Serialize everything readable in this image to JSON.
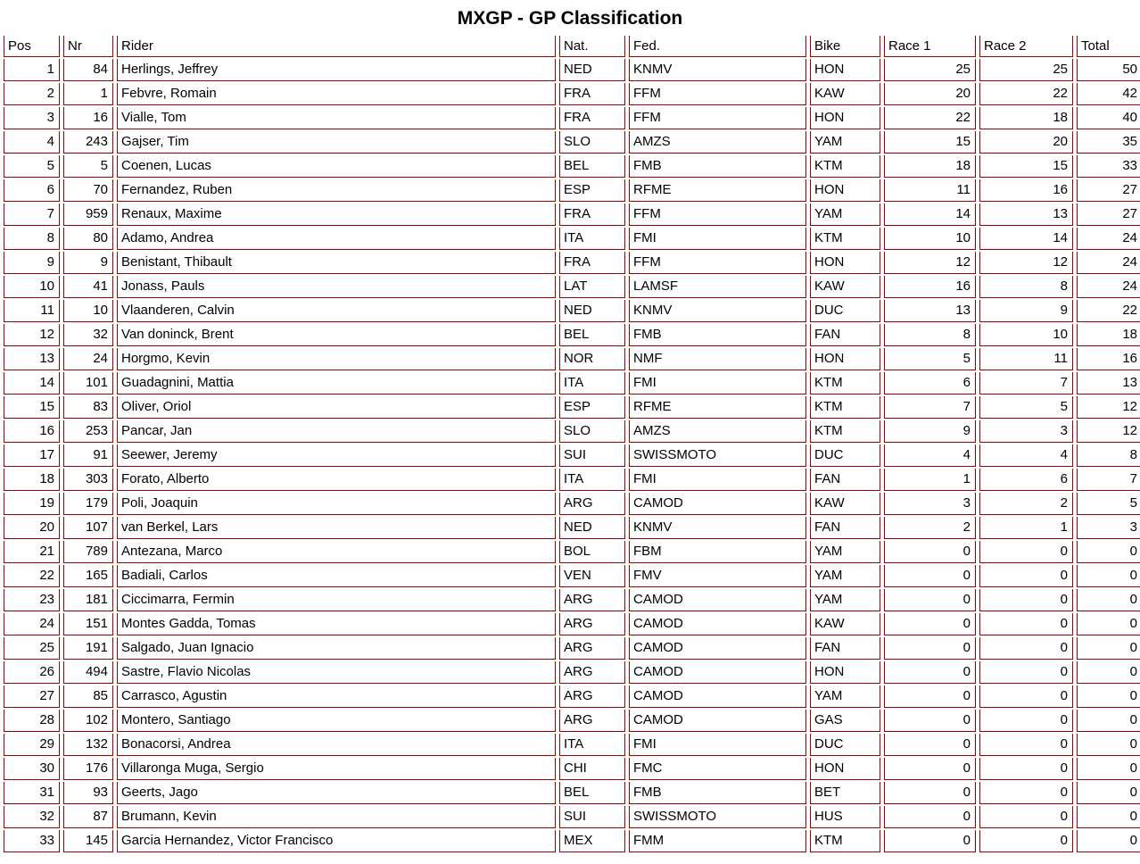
{
  "title": "MXGP - GP Classification",
  "colors": {
    "border": "#990000",
    "text": "#000000",
    "background": "#ffffff"
  },
  "table": {
    "columns": [
      {
        "key": "pos",
        "label": "Pos",
        "align": "right"
      },
      {
        "key": "nr",
        "label": "Nr",
        "align": "right"
      },
      {
        "key": "rider",
        "label": "Rider",
        "align": "left"
      },
      {
        "key": "nat",
        "label": "Nat.",
        "align": "left"
      },
      {
        "key": "fed",
        "label": "Fed.",
        "align": "left"
      },
      {
        "key": "bike",
        "label": "Bike",
        "align": "left"
      },
      {
        "key": "race1",
        "label": "Race 1",
        "align": "right"
      },
      {
        "key": "race2",
        "label": "Race 2",
        "align": "right"
      },
      {
        "key": "total",
        "label": "Total",
        "align": "right"
      }
    ],
    "rows": [
      [
        1,
        84,
        "Herlings, Jeffrey",
        "NED",
        "KNMV",
        "HON",
        25,
        25,
        50
      ],
      [
        2,
        1,
        "Febvre, Romain",
        "FRA",
        "FFM",
        "KAW",
        20,
        22,
        42
      ],
      [
        3,
        16,
        "Vialle, Tom",
        "FRA",
        "FFM",
        "HON",
        22,
        18,
        40
      ],
      [
        4,
        243,
        "Gajser, Tim",
        "SLO",
        "AMZS",
        "YAM",
        15,
        20,
        35
      ],
      [
        5,
        5,
        "Coenen, Lucas",
        "BEL",
        "FMB",
        "KTM",
        18,
        15,
        33
      ],
      [
        6,
        70,
        "Fernandez, Ruben",
        "ESP",
        "RFME",
        "HON",
        11,
        16,
        27
      ],
      [
        7,
        959,
        "Renaux, Maxime",
        "FRA",
        "FFM",
        "YAM",
        14,
        13,
        27
      ],
      [
        8,
        80,
        "Adamo, Andrea",
        "ITA",
        "FMI",
        "KTM",
        10,
        14,
        24
      ],
      [
        9,
        9,
        "Benistant, Thibault",
        "FRA",
        "FFM",
        "HON",
        12,
        12,
        24
      ],
      [
        10,
        41,
        "Jonass, Pauls",
        "LAT",
        "LAMSF",
        "KAW",
        16,
        8,
        24
      ],
      [
        11,
        10,
        "Vlaanderen, Calvin",
        "NED",
        "KNMV",
        "DUC",
        13,
        9,
        22
      ],
      [
        12,
        32,
        "Van doninck, Brent",
        "BEL",
        "FMB",
        "FAN",
        8,
        10,
        18
      ],
      [
        13,
        24,
        "Horgmo, Kevin",
        "NOR",
        "NMF",
        "HON",
        5,
        11,
        16
      ],
      [
        14,
        101,
        "Guadagnini, Mattia",
        "ITA",
        "FMI",
        "KTM",
        6,
        7,
        13
      ],
      [
        15,
        83,
        "Oliver, Oriol",
        "ESP",
        "RFME",
        "KTM",
        7,
        5,
        12
      ],
      [
        16,
        253,
        "Pancar, Jan",
        "SLO",
        "AMZS",
        "KTM",
        9,
        3,
        12
      ],
      [
        17,
        91,
        "Seewer, Jeremy",
        "SUI",
        "SWISSMOTO",
        "DUC",
        4,
        4,
        8
      ],
      [
        18,
        303,
        "Forato, Alberto",
        "ITA",
        "FMI",
        "FAN",
        1,
        6,
        7
      ],
      [
        19,
        179,
        "Poli, Joaquin",
        "ARG",
        "CAMOD",
        "KAW",
        3,
        2,
        5
      ],
      [
        20,
        107,
        "van Berkel, Lars",
        "NED",
        "KNMV",
        "FAN",
        2,
        1,
        3
      ],
      [
        21,
        789,
        "Antezana, Marco",
        "BOL",
        "FBM",
        "YAM",
        0,
        0,
        0
      ],
      [
        22,
        165,
        "Badiali, Carlos",
        "VEN",
        "FMV",
        "YAM",
        0,
        0,
        0
      ],
      [
        23,
        181,
        "Ciccimarra, Fermin",
        "ARG",
        "CAMOD",
        "YAM",
        0,
        0,
        0
      ],
      [
        24,
        151,
        "Montes Gadda, Tomas",
        "ARG",
        "CAMOD",
        "KAW",
        0,
        0,
        0
      ],
      [
        25,
        191,
        "Salgado, Juan Ignacio",
        "ARG",
        "CAMOD",
        "FAN",
        0,
        0,
        0
      ],
      [
        26,
        494,
        "Sastre, Flavio Nicolas",
        "ARG",
        "CAMOD",
        "HON",
        0,
        0,
        0
      ],
      [
        27,
        85,
        "Carrasco, Agustin",
        "ARG",
        "CAMOD",
        "YAM",
        0,
        0,
        0
      ],
      [
        28,
        102,
        "Montero, Santiago",
        "ARG",
        "CAMOD",
        "GAS",
        0,
        0,
        0
      ],
      [
        29,
        132,
        "Bonacorsi, Andrea",
        "ITA",
        "FMI",
        "DUC",
        0,
        0,
        0
      ],
      [
        30,
        176,
        "Villaronga Muga, Sergio",
        "CHI",
        "FMC",
        "HON",
        0,
        0,
        0
      ],
      [
        31,
        93,
        "Geerts, Jago",
        "BEL",
        "FMB",
        "BET",
        0,
        0,
        0
      ],
      [
        32,
        87,
        "Brumann, Kevin",
        "SUI",
        "SWISSMOTO",
        "HUS",
        0,
        0,
        0
      ],
      [
        33,
        145,
        "Garcia Hernandez, Victor Francisco",
        "MEX",
        "FMM",
        "KTM",
        0,
        0,
        0
      ]
    ]
  }
}
